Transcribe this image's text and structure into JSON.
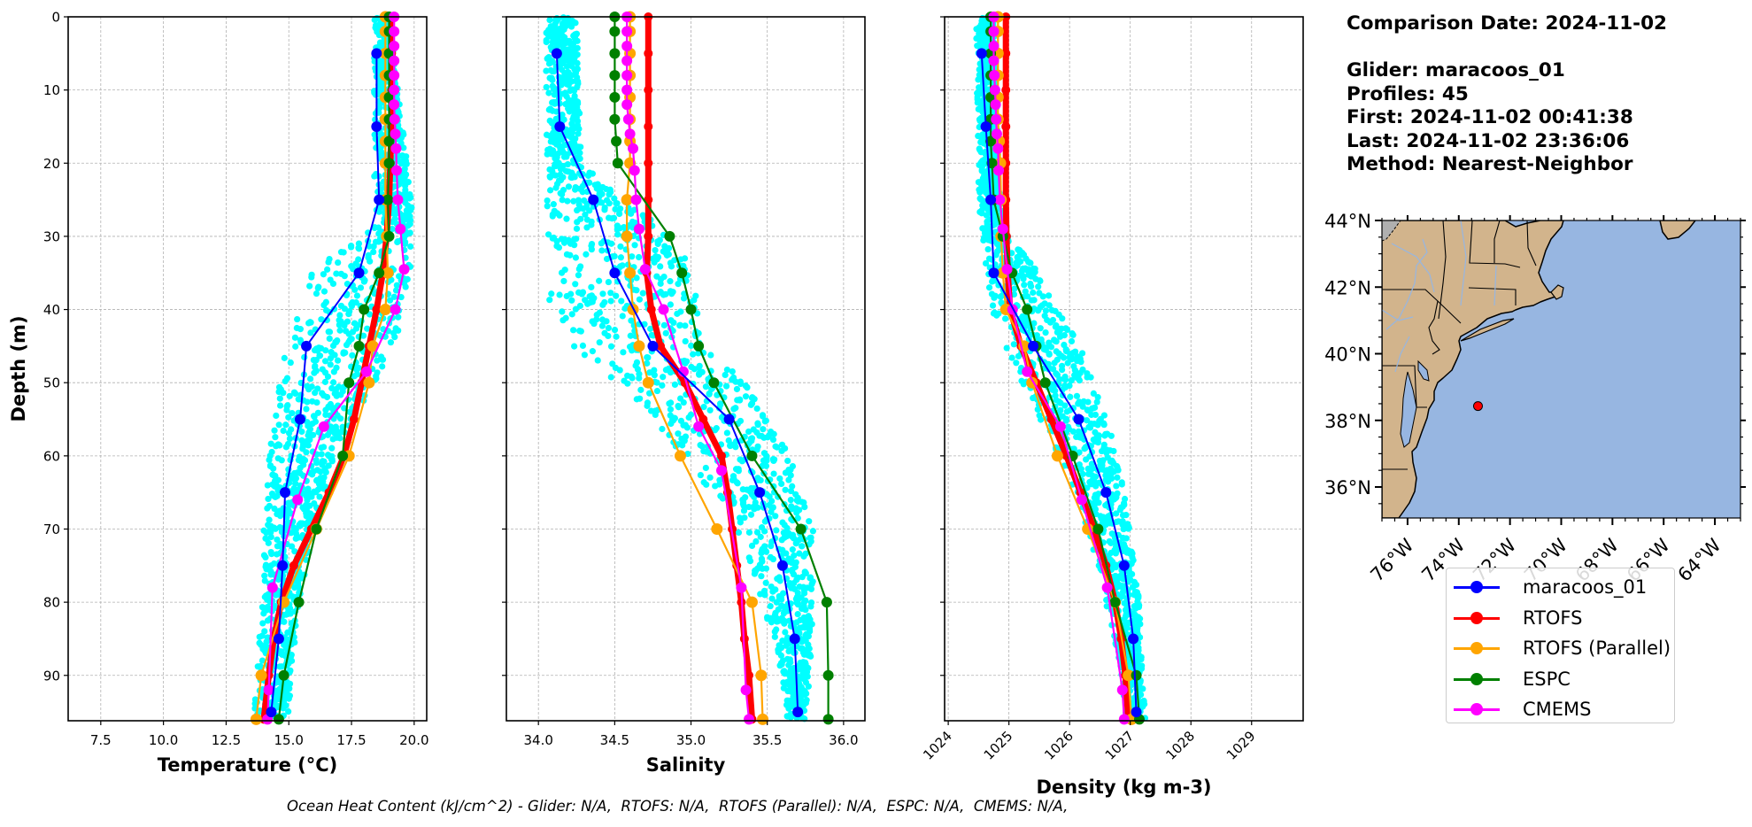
{
  "info": {
    "comparison_date": "Comparison Date: 2024-11-02",
    "glider": "Glider: maracoos_01",
    "profiles": "Profiles: 45",
    "first": "First: 2024-11-02 00:41:38",
    "last": "Last: 2024-11-02 23:36:06",
    "method": "Method: Nearest-Neighbor"
  },
  "footer": "Ocean Heat Content (kJ/cm^2) - Glider: N/A,  RTOFS: N/A,  RTOFS (Parallel): N/A,  ESPC: N/A,  CMEMS: N/A,",
  "colors": {
    "glider": "#0000ff",
    "rtofs": "#ff0000",
    "rtofs_parallel": "#ffa500",
    "espc": "#008000",
    "cmems": "#ff00ff",
    "glider_profiles": "#00ffff",
    "land": "#d2b48c",
    "ocean": "#97b6e1",
    "grid": "#b0b0b0"
  },
  "legend": [
    {
      "key": "glider",
      "label": "maracoos_01"
    },
    {
      "key": "rtofs",
      "label": "RTOFS"
    },
    {
      "key": "rtofs_parallel",
      "label": "RTOFS (Parallel)"
    },
    {
      "key": "espc",
      "label": "ESPC"
    },
    {
      "key": "cmems",
      "label": "CMEMS"
    }
  ],
  "chart_data": [
    {
      "type": "line",
      "id": "temperature",
      "xlabel": "Temperature (°C)",
      "ylabel": "Depth (m)",
      "xlim": [
        6.2,
        20.5
      ],
      "ylim": [
        96.2,
        0
      ],
      "xticks": [
        "7.5",
        "10.0",
        "12.5",
        "15.0",
        "17.5",
        "20.0"
      ],
      "xtick_values": [
        7.5,
        10.0,
        12.5,
        15.0,
        17.5,
        20.0
      ],
      "yticks": [
        0,
        10,
        20,
        30,
        40,
        50,
        60,
        70,
        80,
        90
      ],
      "grid": true,
      "glider_profile_cloud": {
        "depth_range": [
          0,
          96
        ],
        "spread": [
          [
            0,
            18.4,
            19.0
          ],
          [
            25,
            18.4,
            19.9
          ],
          [
            30,
            18.1,
            19.9
          ],
          [
            35,
            15.6,
            19.9
          ],
          [
            40,
            15.2,
            19.6
          ],
          [
            45,
            14.9,
            19.2
          ],
          [
            50,
            14.6,
            18.4
          ],
          [
            55,
            14.4,
            17.6
          ],
          [
            60,
            14.2,
            16.8
          ],
          [
            70,
            14.0,
            16.0
          ],
          [
            80,
            13.9,
            15.4
          ],
          [
            90,
            13.7,
            15.1
          ],
          [
            96,
            13.6,
            15.0
          ]
        ]
      },
      "series": [
        {
          "name": "maracoos_01",
          "key": "glider",
          "depth": [
            5,
            15,
            25,
            35,
            45,
            55,
            65,
            75,
            85,
            95
          ],
          "values": [
            18.5,
            18.5,
            18.6,
            17.8,
            15.7,
            15.45,
            14.85,
            14.75,
            14.6,
            14.3
          ]
        },
        {
          "name": "RTOFS",
          "key": "rtofs",
          "depth": [
            0,
            5,
            10,
            15,
            20,
            25,
            30,
            35,
            40,
            45,
            50,
            55,
            60,
            65,
            70,
            75,
            80,
            85,
            90,
            96
          ],
          "values": [
            19.1,
            19.1,
            19.1,
            19.1,
            19.05,
            19.0,
            18.9,
            18.75,
            18.5,
            18.2,
            17.9,
            17.6,
            17.2,
            16.6,
            15.9,
            15.2,
            14.7,
            14.4,
            14.2,
            14.0
          ]
        },
        {
          "name": "RTOFS (Parallel)",
          "key": "rtofs_parallel",
          "depth": [
            0,
            2,
            5,
            8,
            11,
            14,
            17,
            20,
            25,
            30,
            35,
            40,
            45,
            50,
            60,
            70,
            80,
            90,
            96
          ],
          "values": [
            18.85,
            18.85,
            18.85,
            18.85,
            18.85,
            18.85,
            18.85,
            18.85,
            18.85,
            18.9,
            18.95,
            18.85,
            18.35,
            18.2,
            17.4,
            16.1,
            14.8,
            13.9,
            13.7
          ]
        },
        {
          "name": "ESPC",
          "key": "espc",
          "depth": [
            0,
            2,
            5,
            8,
            11,
            14,
            17,
            20,
            25,
            30,
            35,
            40,
            45,
            50,
            60,
            70,
            80,
            90,
            96
          ],
          "values": [
            19.0,
            19.0,
            19.0,
            19.0,
            19.0,
            19.0,
            19.0,
            19.0,
            18.95,
            19.0,
            18.6,
            18.0,
            17.8,
            17.4,
            17.15,
            16.1,
            15.4,
            14.8,
            14.6
          ]
        },
        {
          "name": "CMEMS",
          "key": "cmems",
          "depth": [
            0,
            2,
            4,
            6,
            8,
            10,
            12,
            14,
            16,
            18,
            21,
            25,
            29,
            34.5,
            40,
            48.5,
            56,
            66,
            78,
            92,
            96
          ],
          "values": [
            19.2,
            19.2,
            19.2,
            19.2,
            19.2,
            19.2,
            19.2,
            19.22,
            19.25,
            19.28,
            19.3,
            19.35,
            19.45,
            19.6,
            19.25,
            18.1,
            16.4,
            15.35,
            14.35,
            14.2,
            14.15
          ]
        }
      ]
    },
    {
      "type": "line",
      "id": "salinity",
      "xlabel": "Salinity",
      "ylabel": "",
      "xlim": [
        33.79,
        36.14
      ],
      "ylim": [
        96.2,
        0
      ],
      "xticks": [
        "34.0",
        "34.5",
        "35.0",
        "35.5",
        "36.0"
      ],
      "xtick_values": [
        34.0,
        34.5,
        35.0,
        35.5,
        36.0
      ],
      "yticks": [
        0,
        10,
        20,
        30,
        40,
        50,
        60,
        70,
        80,
        90
      ],
      "grid": true,
      "glider_profile_cloud": {
        "depth_range": [
          0,
          96
        ],
        "spread": [
          [
            0,
            34.05,
            34.25
          ],
          [
            20,
            34.05,
            34.28
          ],
          [
            25,
            34.05,
            34.55
          ],
          [
            30,
            34.05,
            34.9
          ],
          [
            35,
            34.1,
            35.0
          ],
          [
            40,
            34.05,
            35.05
          ],
          [
            45,
            34.15,
            35.1
          ],
          [
            50,
            34.5,
            35.35
          ],
          [
            55,
            34.75,
            35.5
          ],
          [
            60,
            34.95,
            35.65
          ],
          [
            70,
            35.3,
            35.8
          ],
          [
            80,
            35.45,
            35.8
          ],
          [
            90,
            35.6,
            35.78
          ],
          [
            96,
            35.62,
            35.75
          ]
        ]
      },
      "series": [
        {
          "name": "maracoos_01",
          "key": "glider",
          "depth": [
            5,
            15,
            25,
            35,
            45,
            55,
            65,
            75,
            85,
            95
          ],
          "values": [
            34.12,
            34.14,
            34.36,
            34.5,
            34.75,
            35.25,
            35.45,
            35.6,
            35.68,
            35.7
          ]
        },
        {
          "name": "RTOFS",
          "key": "rtofs",
          "depth": [
            0,
            5,
            10,
            15,
            20,
            25,
            30,
            35,
            40,
            45,
            50,
            55,
            60,
            65,
            70,
            75,
            80,
            85,
            90,
            96
          ],
          "values": [
            34.72,
            34.72,
            34.72,
            34.72,
            34.72,
            34.72,
            34.72,
            34.71,
            34.74,
            34.8,
            34.96,
            35.08,
            35.2,
            35.24,
            35.27,
            35.3,
            35.33,
            35.35,
            35.38,
            35.4
          ]
        },
        {
          "name": "RTOFS (Parallel)",
          "key": "rtofs_parallel",
          "depth": [
            0,
            2,
            5,
            8,
            11,
            14,
            17,
            20,
            25,
            30,
            35,
            40,
            45,
            50,
            60,
            70,
            80,
            90,
            96
          ],
          "values": [
            34.6,
            34.6,
            34.6,
            34.6,
            34.6,
            34.6,
            34.6,
            34.6,
            34.58,
            34.58,
            34.6,
            34.62,
            34.66,
            34.72,
            34.93,
            35.17,
            35.4,
            35.46,
            35.47
          ]
        },
        {
          "name": "ESPC",
          "key": "espc",
          "depth": [
            0,
            2,
            5,
            8,
            11,
            14,
            17,
            20,
            30,
            35,
            40,
            45,
            50,
            60,
            70,
            80,
            90,
            96
          ],
          "values": [
            34.5,
            34.5,
            34.5,
            34.5,
            34.5,
            34.5,
            34.51,
            34.52,
            34.86,
            34.94,
            35.0,
            35.05,
            35.15,
            35.4,
            35.72,
            35.89,
            35.9,
            35.9
          ]
        },
        {
          "name": "CMEMS",
          "key": "cmems",
          "depth": [
            0,
            2,
            4,
            6,
            8,
            10,
            12,
            14,
            16,
            18,
            21,
            25,
            29,
            34.5,
            40,
            48.5,
            56,
            62,
            78,
            92,
            96
          ],
          "values": [
            34.58,
            34.58,
            34.58,
            34.58,
            34.58,
            34.58,
            34.58,
            34.59,
            34.6,
            34.62,
            34.63,
            34.64,
            34.66,
            34.7,
            34.82,
            34.95,
            35.05,
            35.2,
            35.33,
            35.36,
            35.38
          ]
        }
      ]
    },
    {
      "type": "line",
      "id": "density",
      "xlabel": "Density (kg m-3)",
      "ylabel": "",
      "xlim": [
        1023.94,
        1029.85
      ],
      "ylim": [
        96.2,
        0
      ],
      "xticks": [
        "1024",
        "1025",
        "1026",
        "1027",
        "1028",
        "1029"
      ],
      "xtick_values": [
        1024,
        1025,
        1026,
        1027,
        1028,
        1029
      ],
      "yticks": [
        0,
        10,
        20,
        30,
        40,
        50,
        60,
        70,
        80,
        90
      ],
      "grid": true,
      "glider_profile_cloud": {
        "depth_range": [
          0,
          96
        ],
        "spread": [
          [
            0,
            1024.45,
            1024.75
          ],
          [
            25,
            1024.5,
            1024.85
          ],
          [
            30,
            1024.55,
            1025.0
          ],
          [
            35,
            1024.6,
            1025.5
          ],
          [
            40,
            1024.7,
            1025.8
          ],
          [
            45,
            1024.9,
            1026.2
          ],
          [
            50,
            1025.2,
            1026.4
          ],
          [
            55,
            1025.5,
            1026.6
          ],
          [
            60,
            1025.8,
            1026.8
          ],
          [
            70,
            1026.3,
            1027.0
          ],
          [
            80,
            1026.6,
            1027.15
          ],
          [
            90,
            1026.85,
            1027.2
          ],
          [
            96,
            1026.9,
            1027.25
          ]
        ]
      },
      "series": [
        {
          "name": "maracoos_01",
          "key": "glider",
          "depth": [
            5,
            15,
            25,
            35,
            45,
            55,
            65,
            75,
            85,
            95
          ],
          "values": [
            1024.55,
            1024.62,
            1024.7,
            1024.75,
            1025.4,
            1026.15,
            1026.6,
            1026.9,
            1027.05,
            1027.1
          ]
        },
        {
          "name": "RTOFS",
          "key": "rtofs",
          "depth": [
            0,
            5,
            10,
            15,
            20,
            25,
            30,
            35,
            40,
            45,
            50,
            55,
            60,
            65,
            70,
            75,
            80,
            85,
            90,
            96
          ],
          "values": [
            1024.95,
            1024.95,
            1024.95,
            1024.95,
            1024.95,
            1024.95,
            1024.96,
            1024.98,
            1025.02,
            1025.2,
            1025.45,
            1025.7,
            1025.95,
            1026.18,
            1026.4,
            1026.6,
            1026.75,
            1026.85,
            1026.92,
            1026.97
          ]
        },
        {
          "name": "RTOFS (Parallel)",
          "key": "rtofs_parallel",
          "depth": [
            0,
            2,
            5,
            8,
            11,
            14,
            17,
            20,
            25,
            30,
            35,
            40,
            45,
            50,
            60,
            70,
            80,
            90,
            96
          ],
          "values": [
            1024.82,
            1024.82,
            1024.82,
            1024.82,
            1024.82,
            1024.82,
            1024.84,
            1024.86,
            1024.87,
            1024.87,
            1024.9,
            1024.95,
            1025.25,
            1025.38,
            1025.8,
            1026.3,
            1026.75,
            1026.97,
            1027.02
          ]
        },
        {
          "name": "ESPC",
          "key": "espc",
          "depth": [
            0,
            2,
            5,
            8,
            11,
            14,
            17,
            20,
            25,
            30,
            35,
            40,
            45,
            50,
            60,
            70,
            80,
            90,
            96
          ],
          "values": [
            1024.7,
            1024.7,
            1024.7,
            1024.7,
            1024.7,
            1024.7,
            1024.7,
            1024.72,
            1024.75,
            1024.9,
            1025.05,
            1025.3,
            1025.45,
            1025.6,
            1026.05,
            1026.47,
            1026.75,
            1027.1,
            1027.15
          ]
        },
        {
          "name": "CMEMS",
          "key": "cmems",
          "depth": [
            0,
            2,
            4,
            6,
            8,
            10,
            12,
            14,
            16,
            18,
            21,
            25,
            29,
            34.5,
            40,
            48.5,
            56,
            66,
            78,
            92,
            96
          ],
          "values": [
            1024.75,
            1024.75,
            1024.75,
            1024.75,
            1024.76,
            1024.77,
            1024.78,
            1024.79,
            1024.8,
            1024.82,
            1024.83,
            1024.85,
            1024.9,
            1024.97,
            1025.06,
            1025.3,
            1025.85,
            1026.2,
            1026.62,
            1026.87,
            1026.9
          ]
        }
      ]
    },
    {
      "type": "map",
      "id": "location-map",
      "lon_range": [
        -77.0,
        -63.0
      ],
      "lat_range": [
        35.07,
        44.0
      ],
      "xticks": [
        "76°W",
        "74°W",
        "72°W",
        "70°W",
        "68°W",
        "66°W",
        "64°W"
      ],
      "xtick_values": [
        -76,
        -74,
        -72,
        -70,
        -68,
        -66,
        -64
      ],
      "yticks": [
        "36°N",
        "38°N",
        "40°N",
        "42°N",
        "44°N"
      ],
      "ytick_values": [
        36,
        38,
        40,
        42,
        44
      ],
      "glider_location": {
        "lon": -73.25,
        "lat": 38.43
      }
    }
  ]
}
